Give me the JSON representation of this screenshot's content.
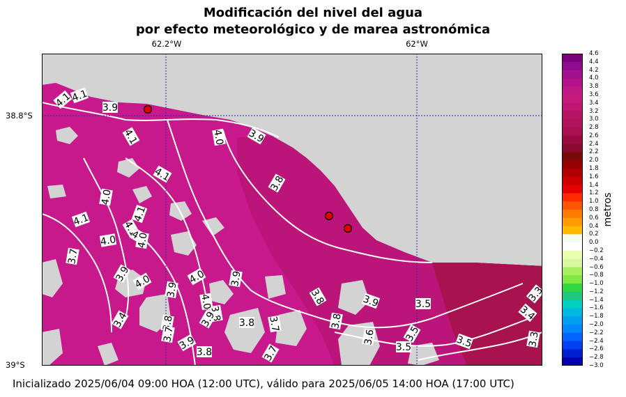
{
  "title_line1": "Modificación del nivel del agua",
  "title_line2": "por efecto meteorológico y de marea astronómica",
  "lon_labels": [
    "62.2°W",
    "62°W"
  ],
  "lat_labels": [
    "38.8°S",
    "39°S"
  ],
  "colorbar": {
    "unit_label": "metros",
    "min": -3.0,
    "max": 4.6,
    "ticks": [
      "4.6",
      "4.4",
      "4.2",
      "4.0",
      "3.8",
      "3.6",
      "3.4",
      "3.2",
      "3.0",
      "2.8",
      "2.6",
      "2.4",
      "2.2",
      "2.0",
      "1.8",
      "1.6",
      "1.4",
      "1.2",
      "1.0",
      "0.8",
      "0.6",
      "0.4",
      "0.2",
      "0.0",
      "−0.2",
      "−0.4",
      "−0.6",
      "−0.8",
      "−1.0",
      "−1.2",
      "−1.4",
      "−1.6",
      "−1.8",
      "−2.0",
      "−2.2",
      "−2.4",
      "−2.6",
      "−2.8",
      "−3.0"
    ]
  },
  "contour_labels": [
    "4.1",
    "4.1",
    "3.9",
    "4.1",
    "4.0",
    "3.9",
    "4.1",
    "4.0",
    "4.1",
    "3.8",
    "4.0",
    "4.1",
    "4.1",
    "4.0",
    "4.0",
    "3.7",
    "3.9",
    "3.9",
    "4.0",
    "3.9",
    "4.0",
    "3.8",
    "3.9",
    "4.0",
    "3.7",
    "3.9",
    "3.5",
    "3.8",
    "3.8",
    "3.4",
    "3.6",
    "3.7",
    "3.5",
    "3.5",
    "3.5",
    "3.4",
    "3.3",
    "3.3",
    "3.8",
    "3.9",
    "3.8",
    "3.7",
    "3.8"
  ],
  "stations": 3,
  "colors": {
    "land": "#d3d3d3",
    "water_high": "#c8198c",
    "water_mid": "#bb1579",
    "water_low": "#a8124f",
    "marker": "#e00000"
  },
  "footer": "Inicializado 2025/06/04 09:00 HOA (12:00 UTC), válido para 2025/06/05 14:00 HOA (17:00 UTC)"
}
